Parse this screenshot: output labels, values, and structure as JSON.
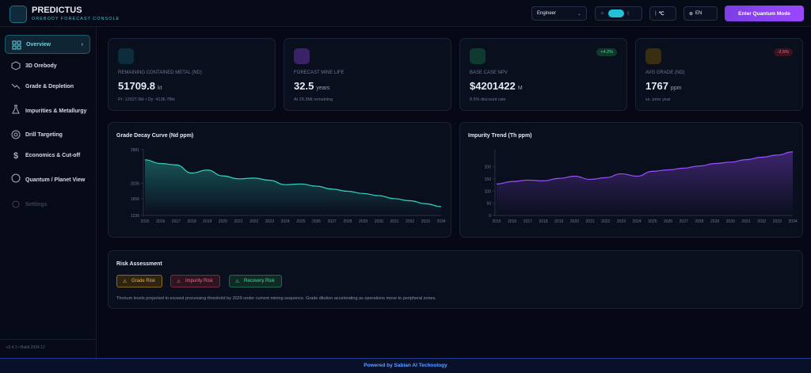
{
  "header": {
    "title": "PREDICTUS",
    "subtitle": "OREBODY FORECAST CONSOLE",
    "role": "Engineer",
    "unit": "℃",
    "language": "EN",
    "action": "Enter Quantum Mode"
  },
  "sidebar": {
    "items": [
      "Overview",
      "3D Orebody",
      "Grade & Depletion",
      "Impurities & Metallurgy",
      "Drill Targeting",
      "Economics & Cut-off",
      "Quantum / Planet View",
      "Settings"
    ],
    "version": "v2.4.1 • Build 2024.12"
  },
  "kpis": [
    {
      "label": "REMAINING CONTAINED METAL (ND)",
      "value": "51709.8",
      "unit": "kt",
      "sub": "Pr: 12927.5kt • Dy: 4136.78kt"
    },
    {
      "label": "FORECAST MINE LIFE",
      "value": "32.5",
      "unit": "years",
      "sub": "At 29.3Mt remaining"
    },
    {
      "label": "BASE CASE NPV",
      "value": "$4201422",
      "unit": "M",
      "sub": "8.5% discount rate",
      "badge": "+4.2%"
    },
    {
      "label": "AVG GRADE (ND)",
      "value": "1767",
      "unit": "ppm",
      "sub": "vs. prior year",
      "badge": "-2.5%"
    }
  ],
  "charts": [
    {
      "type": "line",
      "title": "Grade Decay Curve (Nd ppm)",
      "color": "#2fd6c0",
      "categories": [
        "2015",
        "2016",
        "2017",
        "2018",
        "2019",
        "2020",
        "2021",
        "2022",
        "2023",
        "2024",
        "2025",
        "2026",
        "2027",
        "2028",
        "2029",
        "2030",
        "2031",
        "2032",
        "2033",
        "2034"
      ],
      "values": [
        2627,
        2535,
        2500,
        2297,
        2370,
        2224,
        2151,
        2170,
        2115,
        2005,
        2023,
        1968,
        1895,
        1840,
        1785,
        1730,
        1656,
        1602,
        1529,
        1456
      ],
      "ylim": [
        1236,
        2881
      ],
      "yticks": [
        1236,
        1656,
        2036,
        2881
      ]
    },
    {
      "type": "line",
      "title": "Impurity Trend (Th ppm)",
      "color": "#9b4dff",
      "categories": [
        "2015",
        "2016",
        "2017",
        "2018",
        "2019",
        "2020",
        "2021",
        "2022",
        "2023",
        "2024",
        "2025",
        "2026",
        "2027",
        "2028",
        "2029",
        "2030",
        "2031",
        "2032",
        "2033",
        "2034"
      ],
      "values": [
        129,
        139,
        145,
        142,
        152,
        161,
        148,
        155,
        171,
        161,
        181,
        187,
        194,
        203,
        213,
        219,
        229,
        239,
        248,
        261
      ],
      "ylim": [
        0,
        270
      ],
      "yticks": [
        0,
        50,
        100,
        150,
        200
      ]
    }
  ],
  "risk": {
    "title": "Risk Assessment",
    "badges": [
      "Grade Risk",
      "Impurity Risk",
      "Recovery Risk"
    ],
    "text": "Thorium levels projected to exceed processing threshold by 2029 under current mining sequence. Grade dilution accelerating as operations move to peripheral zones."
  },
  "footer": "Powered by Sabian AI Technology"
}
